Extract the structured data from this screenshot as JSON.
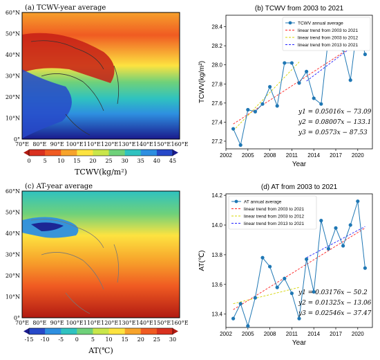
{
  "panel_a": {
    "title": "(a) TCWV-year average",
    "lat_labels": [
      "60°N",
      "50°N",
      "40°N",
      "30°N",
      "20°N",
      "10°N",
      "0°"
    ],
    "lon_labels": [
      "70°E",
      "80°E",
      "90°E",
      "100°E",
      "110°E",
      "120°E",
      "130°E",
      "140°E",
      "150°E",
      "160°E"
    ],
    "colorbar_ticks": [
      "0",
      "5",
      "10",
      "15",
      "20",
      "25",
      "30",
      "35",
      "40",
      "45"
    ],
    "colorbar_label": "TCWV(kg/m²)",
    "colorbar_colors": [
      "#b11a12",
      "#d9311f",
      "#f05b22",
      "#f7a32b",
      "#fde340",
      "#c9e64a",
      "#6fd17a",
      "#2fc2c0",
      "#2e8fe0",
      "#2749c9",
      "#1a1a8c"
    ]
  },
  "panel_c": {
    "title": "(c) AT-year average",
    "lat_labels": [
      "60°N",
      "50°N",
      "40°N",
      "30°N",
      "20°N",
      "10°N",
      "0°"
    ],
    "lon_labels": [
      "70°E",
      "80°E",
      "90°E",
      "100°E",
      "110°E",
      "120°E",
      "130°E",
      "140°E",
      "150°E",
      "160°E"
    ],
    "colorbar_ticks": [
      "-15",
      "-10",
      "-5",
      "0",
      "5",
      "10",
      "15",
      "20",
      "25",
      "30"
    ],
    "colorbar_label": "AT(℃)",
    "colorbar_colors": [
      "#1a1a8c",
      "#2749c9",
      "#2e8fe0",
      "#2fc2c0",
      "#6fd17a",
      "#c9e64a",
      "#fde340",
      "#f7a32b",
      "#f05b22",
      "#d9311f",
      "#b11a12"
    ]
  },
  "chart_data": [
    {
      "type": "line",
      "title": "(b) TCWV from 2003 to 2021",
      "xlabel": "Year",
      "ylabel": "TCWV(kg/m²)",
      "xlim": [
        2002,
        2022
      ],
      "ylim": [
        27.12,
        28.52
      ],
      "xticks": [
        "2002",
        "2005",
        "2008",
        "2011",
        "2014",
        "2017",
        "2020"
      ],
      "yticks": [
        "27.2",
        "27.4",
        "27.6",
        "27.8",
        "28.0",
        "28.2",
        "28.4"
      ],
      "x": [
        2003,
        2004,
        2005,
        2006,
        2007,
        2008,
        2009,
        2010,
        2011,
        2012,
        2013,
        2014,
        2015,
        2016,
        2017,
        2018,
        2019,
        2020,
        2021
      ],
      "series": [
        {
          "name": "TCWV annual average",
          "color": "#1f77b4",
          "values": [
            27.33,
            27.16,
            27.53,
            27.51,
            27.59,
            27.77,
            27.57,
            28.02,
            28.02,
            27.81,
            27.93,
            27.65,
            27.59,
            28.29,
            28.37,
            28.16,
            27.84,
            28.45,
            28.11
          ]
        },
        {
          "name": "linear trend from 2003 to 2021",
          "color": "#ff2020",
          "style": "dashed",
          "x": [
            2003,
            2021
          ],
          "values": [
            27.38,
            28.28
          ]
        },
        {
          "name": "linear trend from 2003 to 2012",
          "color": "#d4d400",
          "style": "dashed",
          "x": [
            2003,
            2012
          ],
          "values": [
            27.31,
            28.03
          ]
        },
        {
          "name": "linear trend from 2013 to 2021",
          "color": "#2020ff",
          "style": "dashed",
          "x": [
            2013,
            2021
          ],
          "values": [
            27.83,
            28.29
          ]
        }
      ],
      "legend_position": "top-right",
      "annotations": [
        "y1 = 0.05016x − 73.09",
        "y2 = 0.08007x − 133.1",
        "y3 = 0.0573x − 87.53"
      ]
    },
    {
      "type": "line",
      "title": "(d) AT from 2003 to 2021",
      "xlabel": "Year",
      "ylabel": "AT(℃)",
      "xlim": [
        2002,
        2022
      ],
      "ylim": [
        13.31,
        14.21
      ],
      "xticks": [
        "2002",
        "2005",
        "2008",
        "2011",
        "2014",
        "2017",
        "2020"
      ],
      "yticks": [
        "13.4",
        "13.6",
        "13.8",
        "14.0",
        "14.2"
      ],
      "x": [
        2003,
        2004,
        2005,
        2006,
        2007,
        2008,
        2009,
        2010,
        2011,
        2012,
        2013,
        2014,
        2015,
        2016,
        2017,
        2018,
        2019,
        2020,
        2021
      ],
      "series": [
        {
          "name": "AT annual average",
          "color": "#1f77b4",
          "values": [
            13.37,
            13.47,
            13.32,
            13.51,
            13.78,
            13.72,
            13.58,
            13.64,
            13.54,
            13.37,
            13.77,
            13.55,
            14.03,
            13.84,
            13.98,
            13.86,
            14.0,
            14.16,
            13.71
          ]
        },
        {
          "name": "linear trend from 2003 to 2021",
          "color": "#ff2020",
          "style": "dashed",
          "x": [
            2003,
            2021
          ],
          "values": [
            13.43,
            13.98
          ]
        },
        {
          "name": "linear trend from 2003 to 2012",
          "color": "#d4d400",
          "style": "dashed",
          "x": [
            2003,
            2012
          ],
          "values": [
            13.47,
            13.58
          ]
        },
        {
          "name": "linear trend from 2013 to 2021",
          "color": "#2020ff",
          "style": "dashed",
          "x": [
            2013,
            2021
          ],
          "values": [
            13.78,
            13.99
          ]
        }
      ],
      "legend_position": "top-left",
      "annotations": [
        "y1 = 0.03176x − 50.2",
        "y2 = 0.01325x − 13.06",
        "y3 = 0.02546x − 37.47"
      ]
    }
  ]
}
